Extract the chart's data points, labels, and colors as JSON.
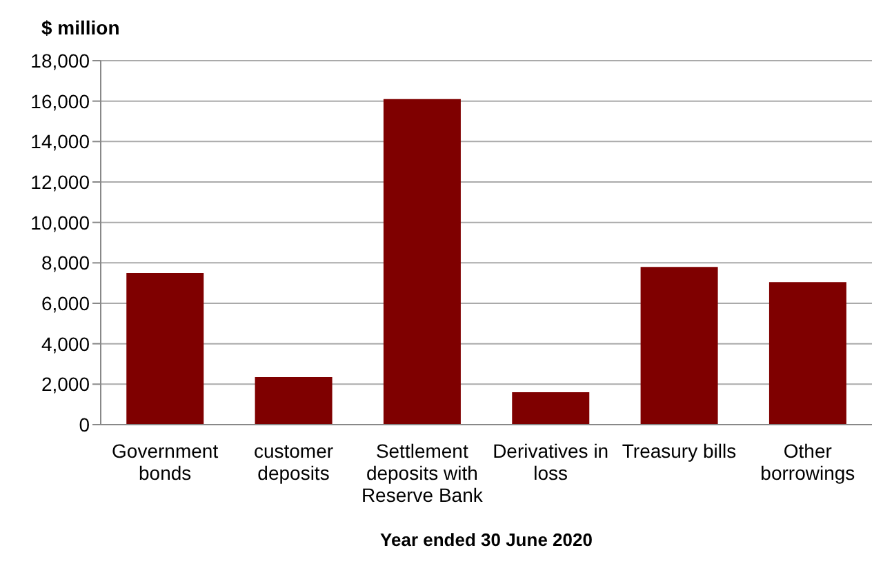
{
  "chart_data": {
    "type": "bar",
    "ylabel": "$ million",
    "xlabel": "Year ended 30 June 2020",
    "categories": [
      "Government bonds",
      "customer deposits",
      "Settlement deposits with Reserve Bank",
      "Derivatives in loss",
      "Treasury bills",
      "Other borrowings"
    ],
    "values": [
      7500,
      2350,
      16100,
      1600,
      7800,
      7050
    ],
    "color": "#7f0000",
    "ylim": [
      0,
      18000
    ],
    "yticks": [
      0,
      {
        "value": 2000,
        "label": "2,000"
      },
      {
        "value": 4000,
        "label": "4,000"
      },
      {
        "value": 6000,
        "label": "6,000"
      },
      {
        "value": 8000,
        "label": "8,000"
      },
      {
        "value": 10000,
        "label": "10,000"
      },
      {
        "value": 12000,
        "label": "12,000"
      },
      {
        "value": 14000,
        "label": "14,000"
      },
      {
        "value": 16000,
        "label": "16,000"
      },
      {
        "value": 18000,
        "label": "18,000"
      }
    ],
    "grid": "y"
  }
}
